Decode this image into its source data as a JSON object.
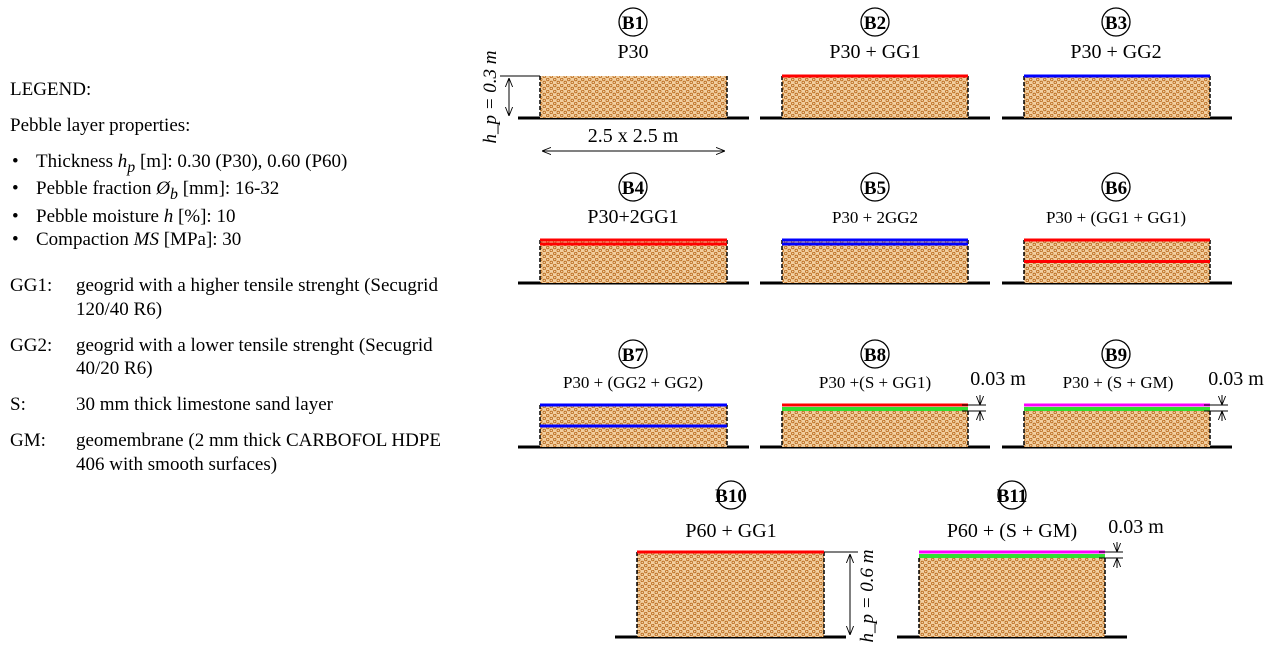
{
  "legend": {
    "title": "LEGEND:",
    "subtitle": "Pebble layer properties:",
    "props": [
      {
        "pre": "Thickness ",
        "sym": "h",
        "sub": "p",
        "post": " [m]: 0.30 (P30), 0.60 (P60)"
      },
      {
        "pre": "Pebble fraction ",
        "sym": "Ø",
        "sub": "b",
        "post": " [mm]: 16-32"
      },
      {
        "pre": "Pebble moisture ",
        "sym": "h",
        "sub": "",
        "post": " [%]: 10"
      },
      {
        "pre": "Compaction ",
        "sym": "MS",
        "sub": "",
        "post": " [MPa]: 30"
      }
    ],
    "abbreviations": [
      {
        "key": "GG1:",
        "desc": "geogrid with a higher tensile strenght (Secugrid 120/40 R6)"
      },
      {
        "key": "GG2:",
        "desc": "geogrid with a lower tensile strenght (Secugrid 40/20 R6)"
      },
      {
        "key": "S:",
        "desc": "30 mm thick limestone sand layer"
      },
      {
        "key": "GM:",
        "desc": "geomembrane (2 mm thick CARBOFOL HDPE 406 with smooth surfaces)"
      }
    ]
  },
  "colors": {
    "pebble_fill": "#f2cfa0",
    "pebble_dot": "#b9691c",
    "GG1": "#ff0000",
    "GG2": "#0000ff",
    "S": "#33dd33",
    "GM": "#ff00ff",
    "ground": "#000000"
  },
  "dimensions": {
    "hp_small": "h_p = 0.3 m",
    "hp_large": "h_p = 0.6 m",
    "plan": "2.5 x 2.5 m",
    "sand": "0.03 m"
  },
  "cases": [
    {
      "id": "B1",
      "title": "P30",
      "layers": []
    },
    {
      "id": "B2",
      "title": "P30 + GG1",
      "layers": [
        "GG1@top"
      ]
    },
    {
      "id": "B3",
      "title": "P30 + GG2",
      "layers": [
        "GG2@top"
      ]
    },
    {
      "id": "B4",
      "title": "P30+2GG1",
      "layers": [
        "GG1@top",
        "GG1@top-2"
      ]
    },
    {
      "id": "B5",
      "title": "P30 + 2GG2",
      "layers": [
        "GG2@top",
        "GG2@top-2"
      ]
    },
    {
      "id": "B6",
      "title": "P30 + (GG1 + GG1)",
      "layers": [
        "GG1@top",
        "GG1@mid"
      ]
    },
    {
      "id": "B7",
      "title": "P30 + (GG2 + GG2)",
      "layers": [
        "GG2@top",
        "GG2@mid"
      ]
    },
    {
      "id": "B8",
      "title": "P30 +(S + GG1)",
      "layers": [
        "GG1@top",
        "S@top"
      ]
    },
    {
      "id": "B9",
      "title": "P30 + (S + GM)",
      "layers": [
        "GM@top",
        "S@top"
      ]
    },
    {
      "id": "B10",
      "title": "P60 + GG1",
      "layers": [
        "GG1@top"
      ]
    },
    {
      "id": "B11",
      "title": "P60 + (S + GM)",
      "layers": [
        "GM@top",
        "S@top"
      ]
    }
  ]
}
